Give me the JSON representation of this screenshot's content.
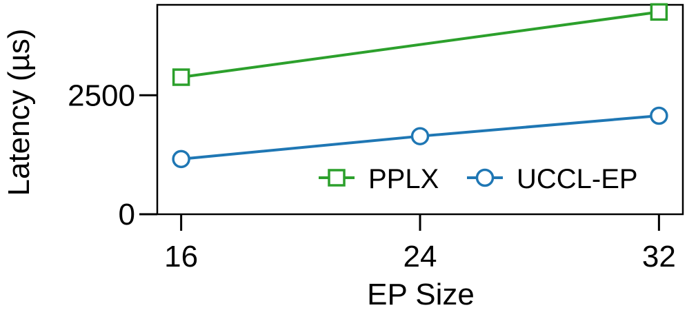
{
  "chart_data": {
    "type": "line",
    "xlabel": "EP Size",
    "ylabel": "Latency (µs)",
    "x": [
      16,
      24,
      32
    ],
    "x_ticks": [
      "16",
      "24",
      "32"
    ],
    "y_ticks": [
      0,
      2500
    ],
    "y_tick_labels": [
      "0",
      "2500"
    ],
    "xlim": [
      15.2,
      32.8
    ],
    "ylim": [
      0,
      4400
    ],
    "grid": false,
    "legend_position": "bottom-right",
    "series": [
      {
        "name": "PPLX",
        "color": "#2ca02c",
        "marker": "square",
        "values": [
          2880,
          null,
          4250
        ]
      },
      {
        "name": "UCCL-EP",
        "color": "#1f77b4",
        "marker": "circle",
        "values": [
          1160,
          1640,
          2070
        ]
      }
    ]
  }
}
